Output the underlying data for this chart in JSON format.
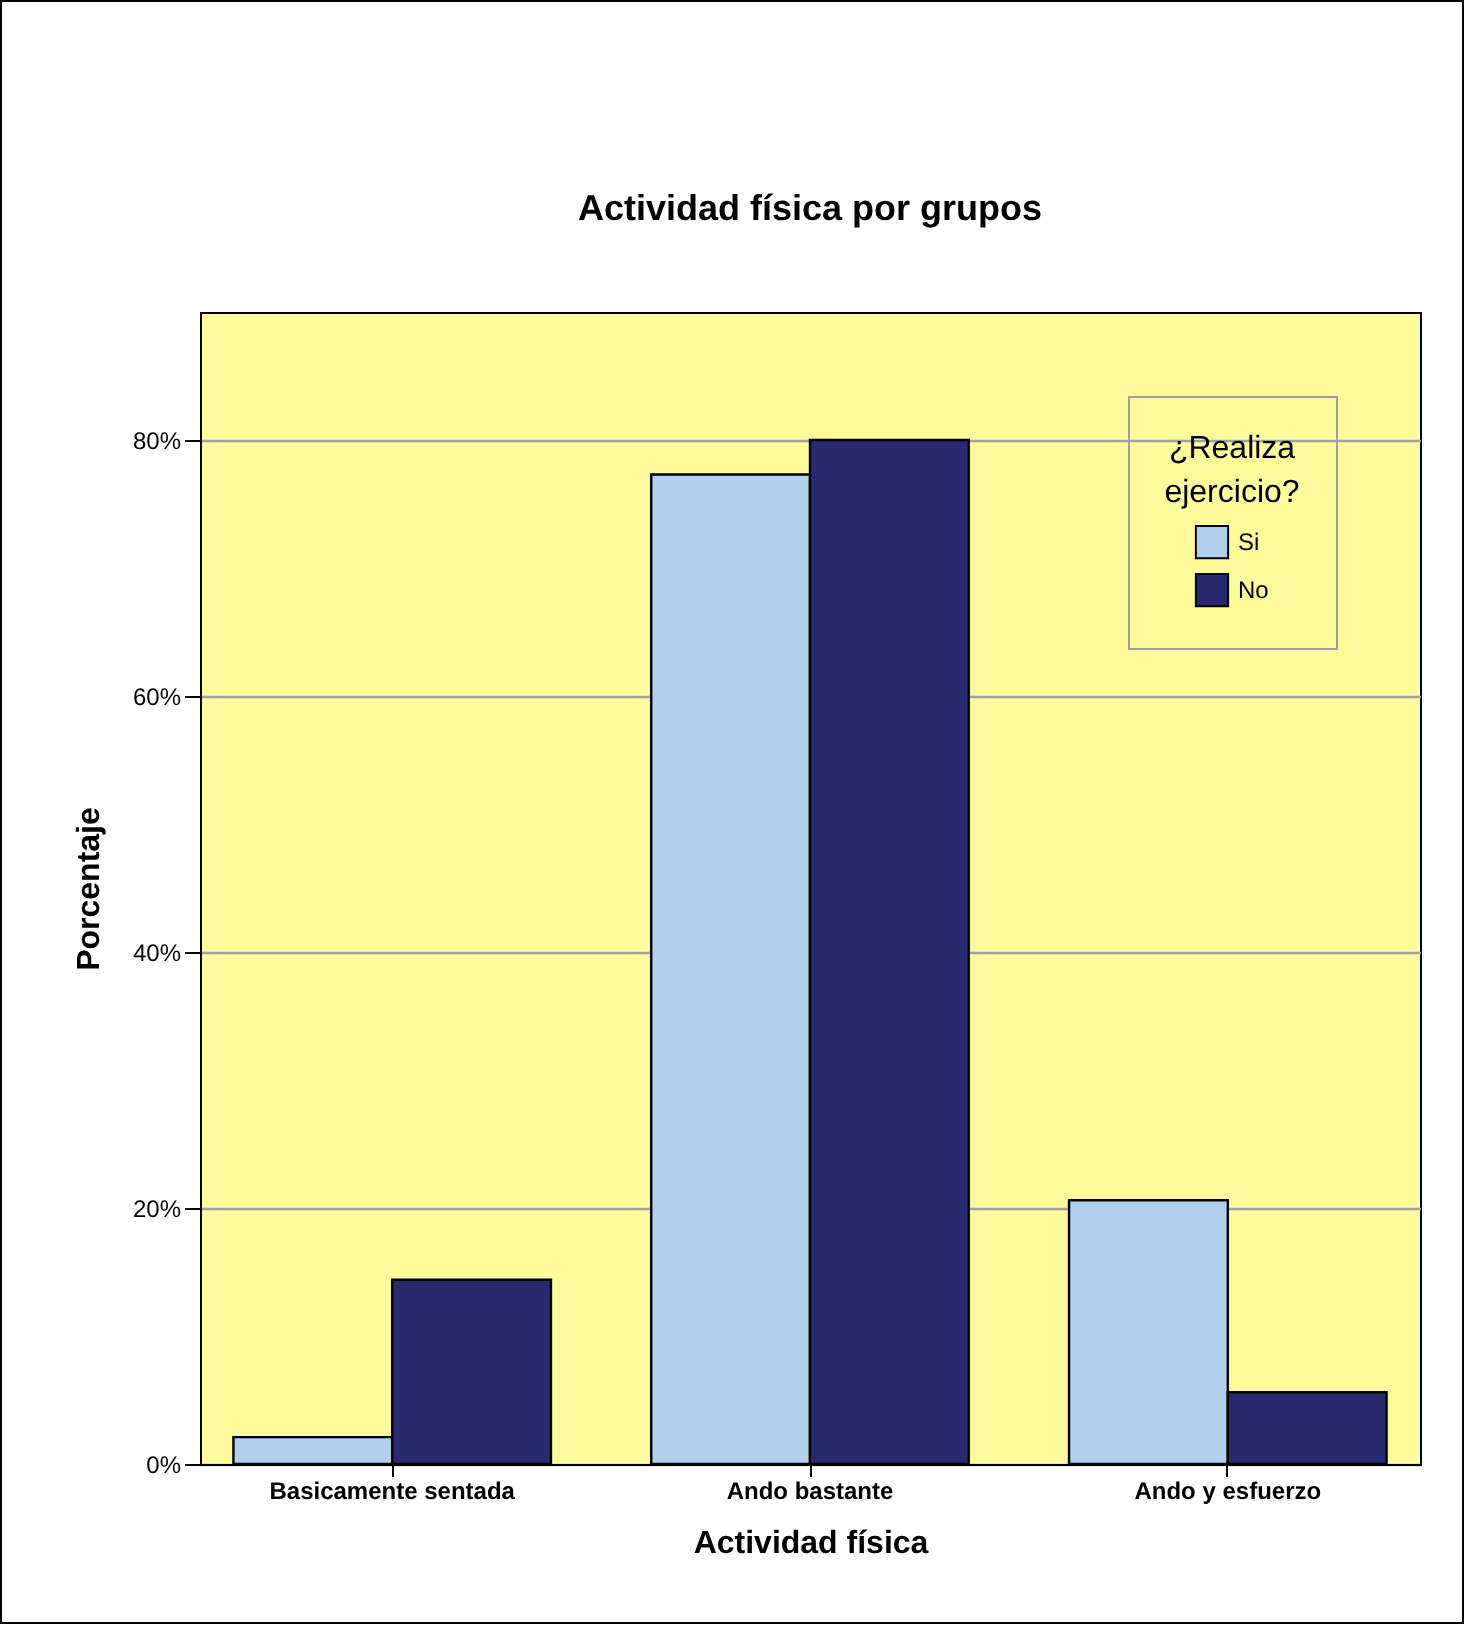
{
  "chart_data": {
    "type": "bar",
    "title": "Actividad física por grupos",
    "xlabel": "Actividad física",
    "ylabel": "Porcentaje",
    "legend_title": "¿Realiza ejercicio?",
    "categories": [
      "Basicamente sentada",
      "Ando bastante",
      "Ando y esfuerzo"
    ],
    "series": [
      {
        "name": "Si",
        "color": "#b0d0ec",
        "values": [
          2.1,
          77.3,
          20.6
        ]
      },
      {
        "name": "No",
        "color": "#282a6e",
        "values": [
          14.4,
          80,
          5.6
        ]
      }
    ],
    "ylim": [
      0,
      90
    ],
    "yticks": [
      {
        "value": 0,
        "label": "0%"
      },
      {
        "value": 20,
        "label": "20%"
      },
      {
        "value": 40,
        "label": "40%"
      },
      {
        "value": 60,
        "label": "60%"
      },
      {
        "value": 80,
        "label": "80%"
      }
    ],
    "grid": "y",
    "legend": "top right"
  }
}
